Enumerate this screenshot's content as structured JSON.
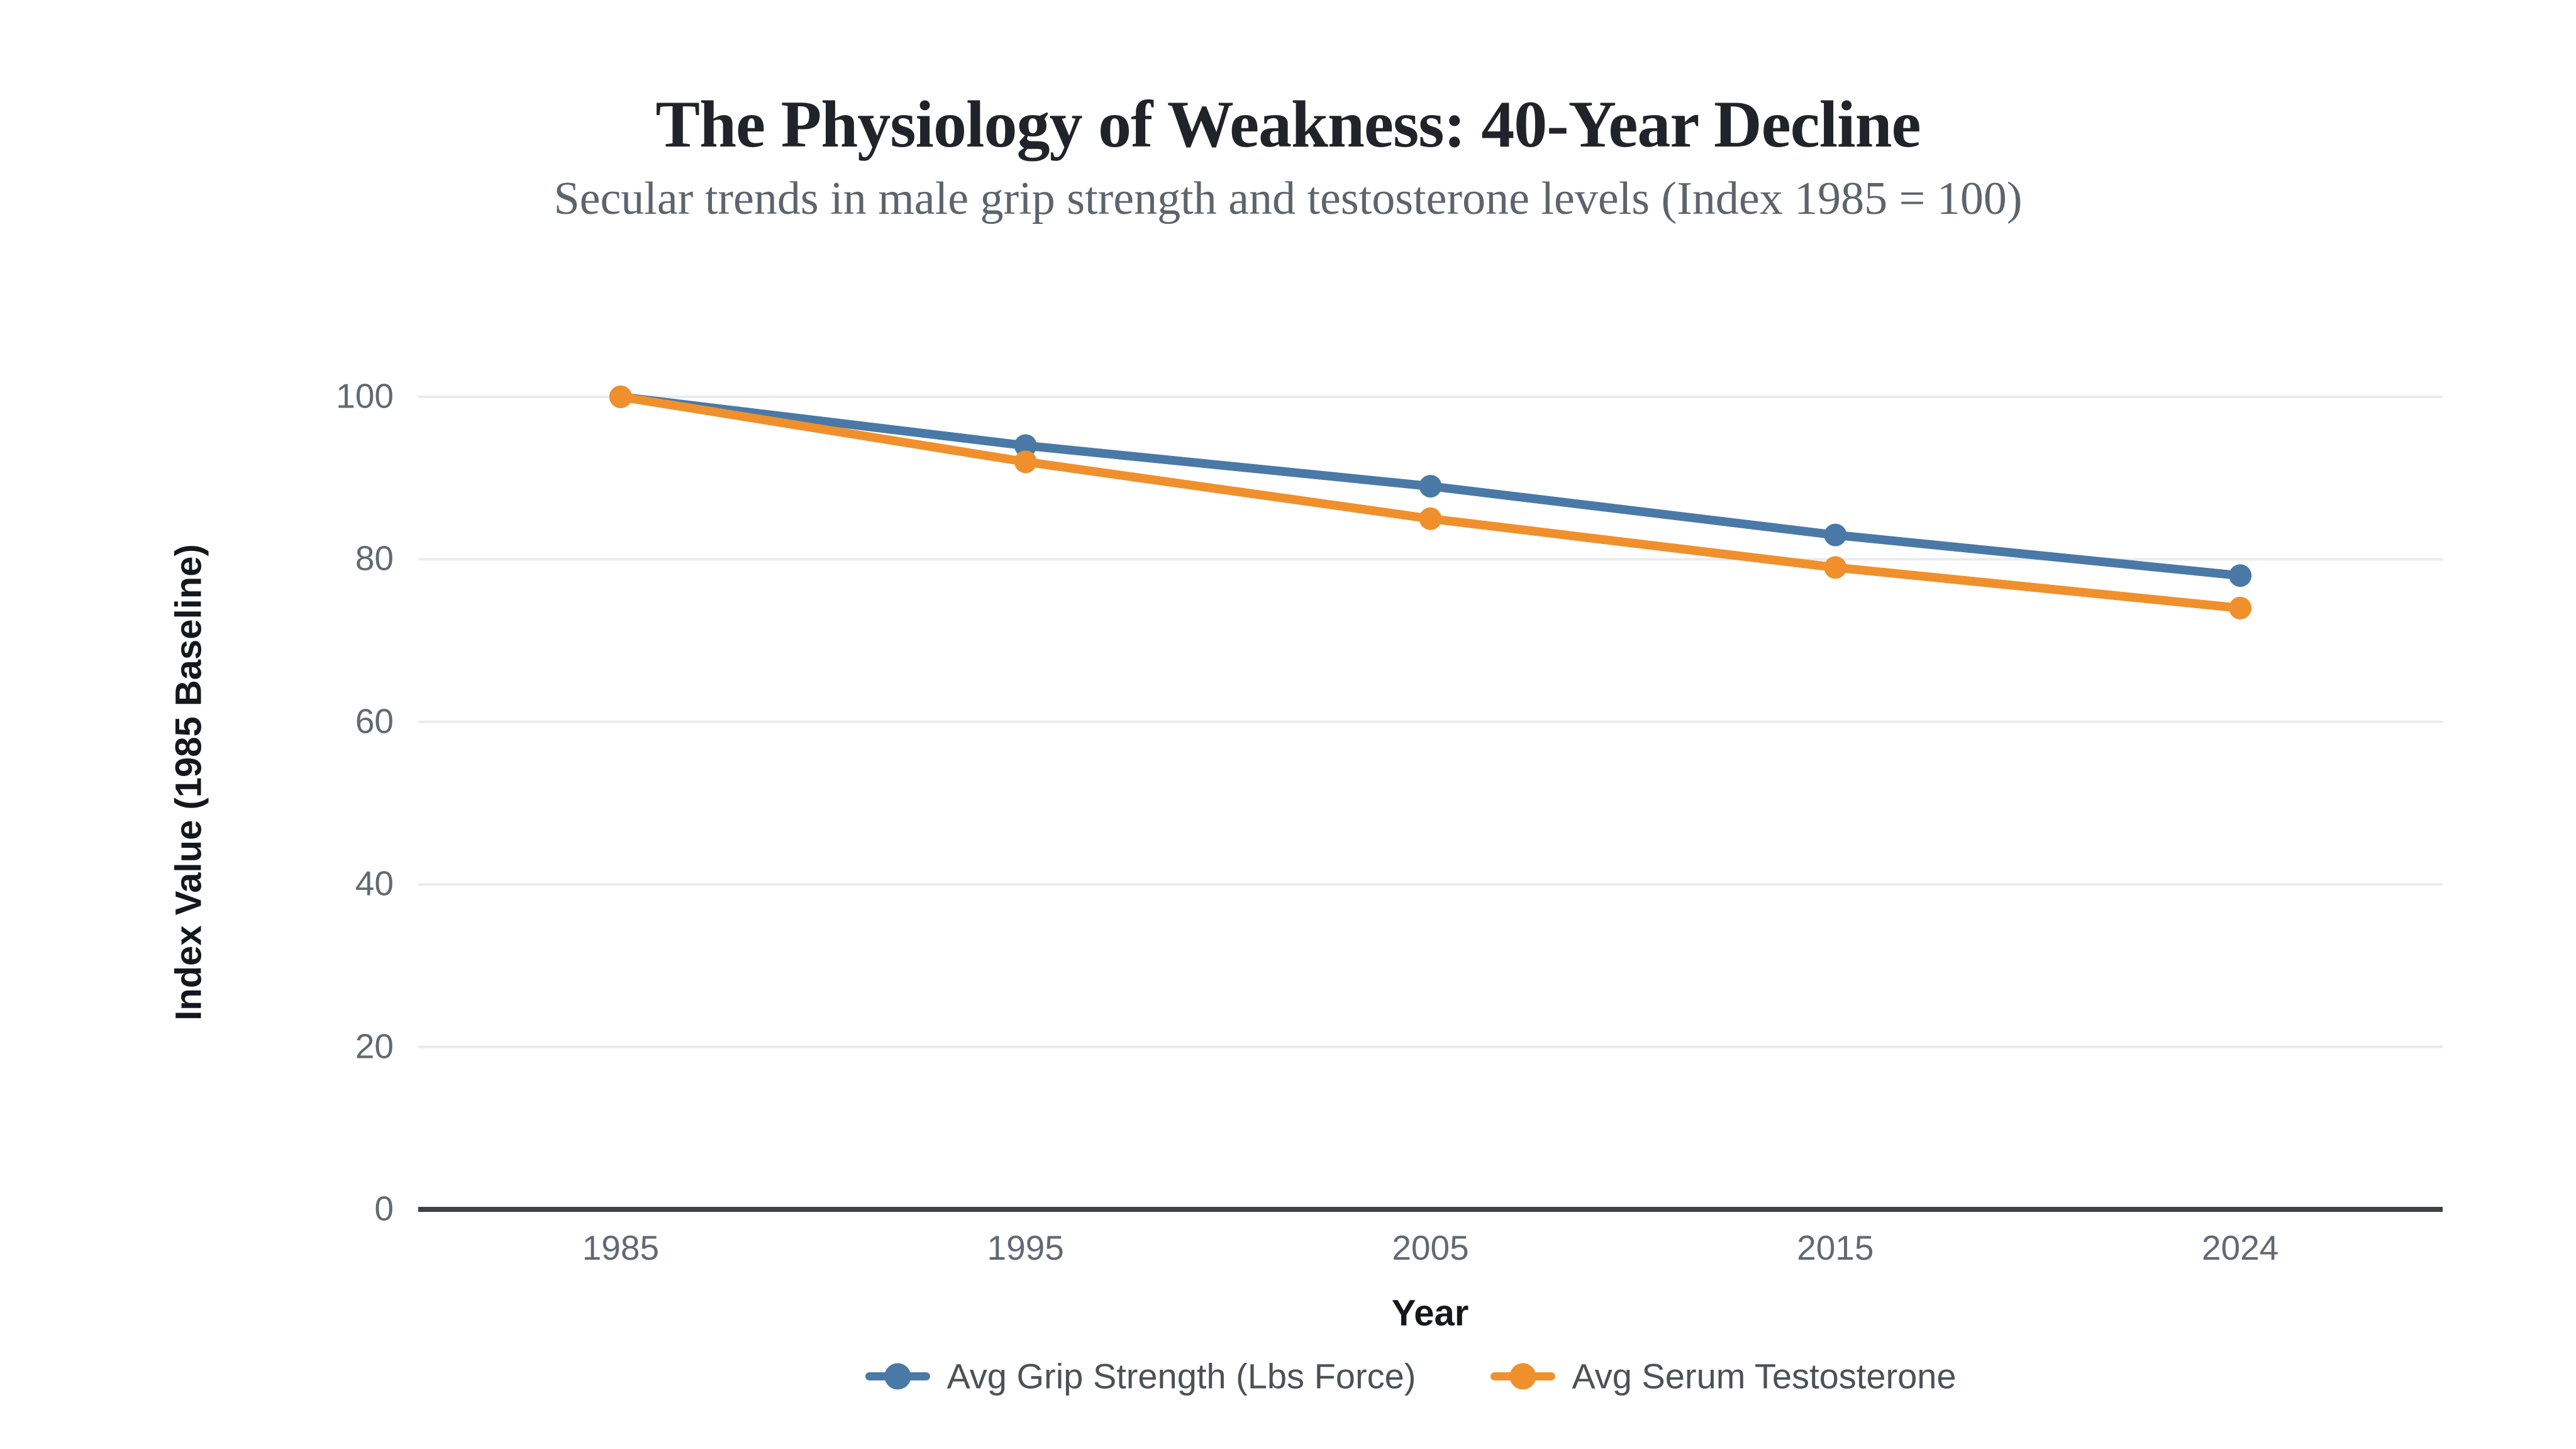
{
  "page": {
    "background": "#ffffff"
  },
  "chart_data": {
    "type": "line",
    "title": "The Physiology of Weakness: 40-Year Decline",
    "subtitle": "Secular trends in male grip strength and testosterone levels (Index 1985 = 100)",
    "xlabel": "Year",
    "ylabel": "Index Value (1985 Baseline)",
    "categories": [
      "1985",
      "1995",
      "2005",
      "2015",
      "2024"
    ],
    "series": [
      {
        "name": "Avg Grip Strength (Lbs Force)",
        "color": "#4a79a7",
        "values": [
          100,
          94,
          89,
          83,
          78
        ]
      },
      {
        "name": "Avg Serum Testosterone",
        "color": "#f0902c",
        "values": [
          100,
          92,
          85,
          79,
          74
        ]
      }
    ],
    "ylim": [
      0,
      105
    ],
    "yticks": [
      0,
      20,
      40,
      60,
      80,
      100
    ],
    "grid": true,
    "legend_position": "bottom"
  },
  "colors": {
    "grid": "#e9ebee",
    "axis_line": "#3d4248",
    "tick_label": "#5f6a73",
    "title": "#20242a",
    "subtitle": "#5c646d",
    "axis_title": "#14181c",
    "legend_text": "#4b5157"
  }
}
